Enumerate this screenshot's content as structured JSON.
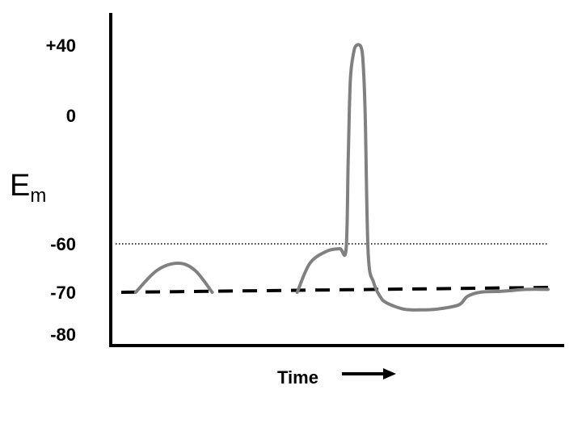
{
  "chart_data": {
    "type": "line",
    "ylabel_main": "E",
    "ylabel_sub": "m",
    "xlabel": "Time",
    "yticks": [
      {
        "value": 40,
        "label": "+40"
      },
      {
        "value": 0,
        "label": "0"
      },
      {
        "value": -60,
        "label": "-60"
      },
      {
        "value": -70,
        "label": "-70"
      },
      {
        "value": -80,
        "label": "-80"
      }
    ],
    "xlim": [
      0,
      100
    ],
    "resting_potential": -70,
    "threshold": -60,
    "series": [
      {
        "style": "solid-gray",
        "color": "#808080",
        "x": [
          3,
          8,
          13,
          17,
          21
        ],
        "y": [
          -70,
          -65.5,
          -64,
          -65.5,
          -70
        ]
      },
      {
        "style": "solid-gray",
        "color": "#808080",
        "x": [
          41,
          44,
          48,
          51,
          52.5,
          53,
          53.5,
          54.3,
          55,
          56,
          56.5,
          57,
          57.7,
          59,
          60.5,
          62,
          66,
          70,
          74,
          79,
          81,
          84,
          89,
          95,
          100
        ],
        "y": [
          -70,
          -64,
          -61.5,
          -61,
          -61,
          -20,
          20,
          36,
          40,
          39,
          30,
          0,
          -62,
          -68,
          -71,
          -72.5,
          -74,
          -74.2,
          -74,
          -73,
          -71,
          -70,
          -69.8,
          -69.4,
          -69.4
        ]
      }
    ],
    "colors": {
      "trace": "#808080",
      "axis": "#000000",
      "dashed": "#000000",
      "dotted": "#000000"
    }
  }
}
